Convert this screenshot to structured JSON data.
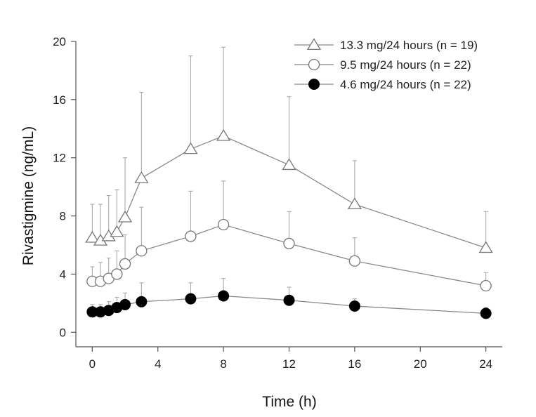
{
  "chart_data": {
    "type": "line",
    "xlabel": "Time (h)",
    "ylabel": "Rivastigmine (ng/mL)",
    "xlim": [
      -1,
      25
    ],
    "ylim": [
      -1,
      20
    ],
    "x_ticks": [
      0,
      4,
      8,
      12,
      16,
      20,
      24
    ],
    "y_ticks": [
      0,
      4,
      8,
      12,
      16,
      20
    ],
    "legend_position": "top-right",
    "series": [
      {
        "name": "13.3 mg/24 hours (n = 19)",
        "marker": "open-triangle",
        "x": [
          0,
          0.5,
          1,
          1.5,
          2,
          3,
          6,
          8,
          12,
          16,
          24
        ],
        "y": [
          6.5,
          6.3,
          6.6,
          6.9,
          7.9,
          10.6,
          12.6,
          13.5,
          11.5,
          8.8,
          5.8
        ],
        "error_upper": [
          8.8,
          8.8,
          9.4,
          9.8,
          12.0,
          16.5,
          19.0,
          19.6,
          16.2,
          11.8,
          8.3
        ]
      },
      {
        "name": "9.5 mg/24 hours (n = 22)",
        "marker": "open-circle",
        "x": [
          0,
          0.5,
          1,
          1.5,
          2,
          3,
          6,
          8,
          12,
          16,
          24
        ],
        "y": [
          3.5,
          3.5,
          3.7,
          4.0,
          4.7,
          5.6,
          6.6,
          7.4,
          6.1,
          4.9,
          3.2
        ],
        "error_upper": [
          4.5,
          4.8,
          5.1,
          5.6,
          6.7,
          8.6,
          9.7,
          10.4,
          8.3,
          6.5,
          4.1
        ]
      },
      {
        "name": "4.6 mg/24 hours (n = 22)",
        "marker": "filled-circle",
        "x": [
          0,
          0.5,
          1,
          1.5,
          2,
          3,
          6,
          8,
          12,
          16,
          24
        ],
        "y": [
          1.4,
          1.4,
          1.5,
          1.7,
          1.9,
          2.1,
          2.3,
          2.5,
          2.2,
          1.8,
          1.3
        ],
        "error_upper": [
          1.9,
          1.9,
          2.1,
          2.4,
          2.7,
          3.4,
          3.4,
          3.7,
          3.1,
          2.3,
          1.7
        ]
      }
    ]
  }
}
